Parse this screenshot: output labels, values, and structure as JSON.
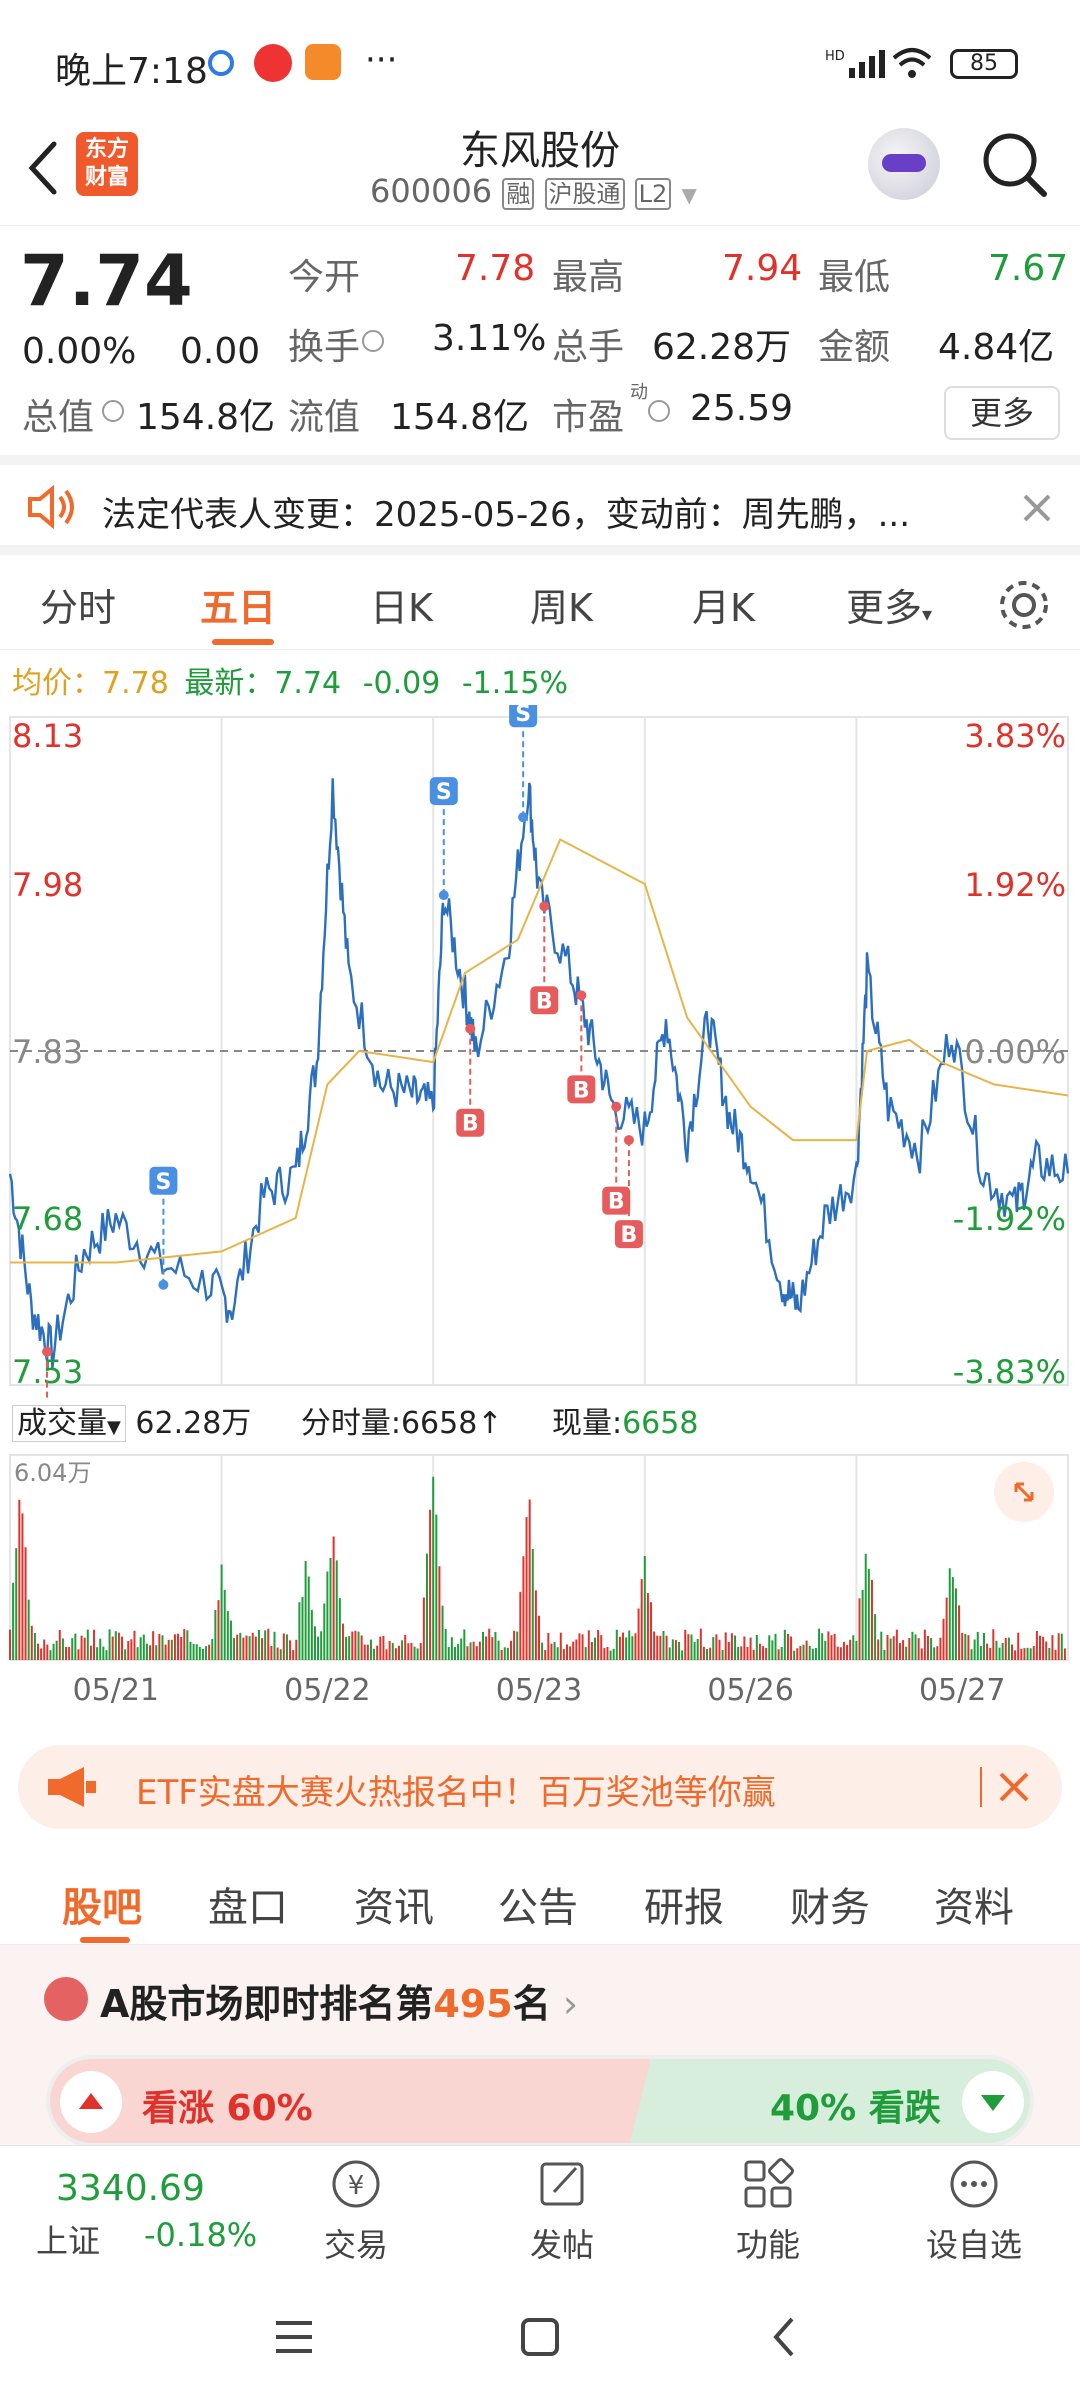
{
  "status": {
    "time": "晚上7:18",
    "battery": "85",
    "more": "···"
  },
  "header": {
    "logo_line1": "东方",
    "logo_line2": "财富",
    "title": "东风股份",
    "code": "600006",
    "tag1": "融",
    "tag2": "沪股通",
    "tag3": "L2"
  },
  "quote": {
    "price": "7.74",
    "change_pct": "0.00%",
    "change_amt": "0.00",
    "open_label": "今开",
    "open": "7.78",
    "high_label": "最高",
    "high": "7.94",
    "low_label": "最低",
    "low": "7.67",
    "turnover_label": "换手",
    "turnover": "3.11%",
    "volume_label": "总手",
    "volume": "62.28万",
    "amount_label": "金额",
    "amount": "4.84亿",
    "mcap_label": "总值",
    "mcap": "154.8亿",
    "float_label": "流值",
    "float": "154.8亿",
    "pe_label": "市盈",
    "pe_sup": "动",
    "pe": "25.59",
    "more_btn": "更多"
  },
  "notice": {
    "text": "法定代表人变更：2025-05-26，变动前：周先鹏，..."
  },
  "tabs": [
    "分时",
    "五日",
    "日K",
    "周K",
    "月K",
    "更多"
  ],
  "active_tab": 1,
  "legend": {
    "avg_label": "均价：",
    "avg": "7.78",
    "latest_label": "最新：",
    "latest": "7.74",
    "chg": "-0.09",
    "chg_pct": "-1.15%"
  },
  "chart_data": {
    "type": "line",
    "x": [
      "05/21",
      "05/22",
      "05/23",
      "05/26",
      "05/27"
    ],
    "y_left_ticks": [
      "8.13",
      "7.98",
      "7.83",
      "7.68",
      "7.53"
    ],
    "y_right_ticks": [
      "3.83%",
      "1.92%",
      "0.00%",
      "-1.92%",
      "-3.83%"
    ],
    "ylim": [
      7.53,
      8.13
    ],
    "prev_close": 7.83,
    "signals": [
      {
        "label": "B",
        "x": 0.035,
        "y": 7.56
      },
      {
        "label": "S",
        "x": 0.145,
        "y": 7.62
      },
      {
        "label": "S",
        "x": 0.41,
        "y": 7.97
      },
      {
        "label": "B",
        "x": 0.435,
        "y": 7.85
      },
      {
        "label": "S",
        "x": 0.485,
        "y": 8.04
      },
      {
        "label": "B",
        "x": 0.505,
        "y": 7.96
      },
      {
        "label": "B",
        "x": 0.54,
        "y": 7.88
      },
      {
        "label": "B",
        "x": 0.573,
        "y": 7.78
      },
      {
        "label": "B",
        "x": 0.585,
        "y": 7.75
      }
    ],
    "volume_max_label": "6.04万"
  },
  "volume": {
    "label": "成交量",
    "total": "62.28万",
    "tick_label": "分时量:",
    "tick": "6658↑",
    "now_label": "现量:",
    "now": "6658"
  },
  "banner": {
    "text": "ETF实盘大赛火热报名中！百万奖池等你赢"
  },
  "subtabs": [
    "股吧",
    "盘口",
    "资讯",
    "公告",
    "研报",
    "财务",
    "资料"
  ],
  "rank": {
    "prefix": "A股市场即时排名第",
    "num": "495",
    "suffix": "名",
    "up": "看涨 60%",
    "down": "40% 看跌"
  },
  "bottom": {
    "index_value": "3340.69",
    "index_name": "上证",
    "index_chg": "-0.18%",
    "items": [
      "交易",
      "发帖",
      "功能",
      "设自选"
    ]
  }
}
